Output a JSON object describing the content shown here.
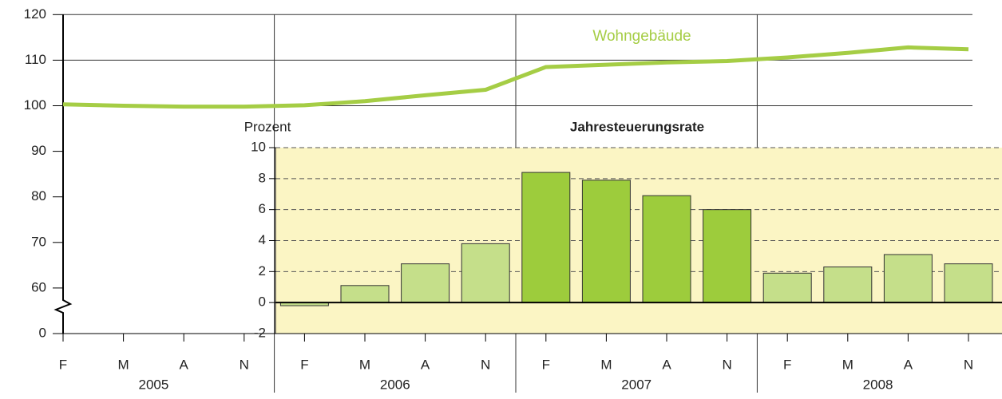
{
  "chart_data": [
    {
      "type": "line",
      "categories": [
        "F",
        "M",
        "A",
        "N",
        "F",
        "M",
        "A",
        "N",
        "F",
        "M",
        "A",
        "N",
        "F",
        "M",
        "A",
        "N"
      ],
      "groups": [
        "2005",
        "2006",
        "2007",
        "2008"
      ],
      "series": [
        {
          "name": "Wohngebäude",
          "color": "#a5cd45",
          "values": [
            100.3,
            100,
            99.8,
            99.8,
            100.1,
            101,
            102.3,
            103.5,
            108.5,
            109,
            109.5,
            109.8,
            110.6,
            111.6,
            112.8,
            112.4
          ]
        }
      ],
      "ylim": [
        0,
        120
      ],
      "yticks": [
        0,
        60,
        70,
        80,
        90,
        100,
        110,
        120
      ],
      "axis_break": true,
      "grid": true
    },
    {
      "type": "bar",
      "title": "Jahresteuerungsrate",
      "ylabel": "Prozent",
      "values": [
        null,
        null,
        null,
        null,
        -0.2,
        1.1,
        2.5,
        3.8,
        8.4,
        7.9,
        6.9,
        6.0,
        1.9,
        2.3,
        3.1,
        2.5
      ],
      "colors": [
        null,
        null,
        null,
        null,
        "#c5df8a",
        "#c5df8a",
        "#c5df8a",
        "#c5df8a",
        "#9dcc3c",
        "#9dcc3c",
        "#9dcc3c",
        "#9dcc3c",
        "#c5df8a",
        "#c5df8a",
        "#c5df8a",
        "#c5df8a"
      ],
      "ylim": [
        -2,
        10
      ],
      "yticks": [
        -2,
        0,
        2,
        4,
        6,
        8,
        10
      ],
      "grid": true,
      "background": "#fbf5c4"
    }
  ]
}
